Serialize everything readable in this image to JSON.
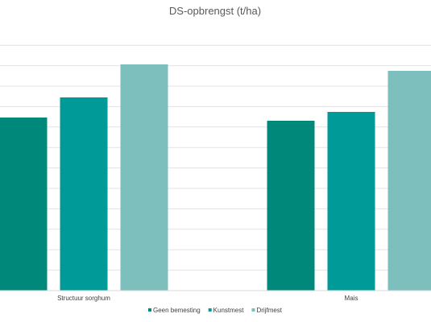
{
  "chart_data": {
    "type": "bar",
    "title": "DS-opbrengst (t/ha)",
    "categories": [
      "Structuur sorghum",
      "Mais"
    ],
    "series": [
      {
        "name": "Geen bemesting",
        "values": [
          21.5,
          21.1
        ],
        "color": "#00897b"
      },
      {
        "name": "Kunstmest",
        "values": [
          24.0,
          22.2
        ],
        "color": "#009a98"
      },
      {
        "name": "Drijfmest",
        "values": [
          28.1,
          27.3
        ],
        "color": "#7dbfbd"
      }
    ],
    "ylim": [
      0,
      33
    ],
    "y_gridline_step": 2.54,
    "grid": true,
    "legend_position": "bottom"
  }
}
